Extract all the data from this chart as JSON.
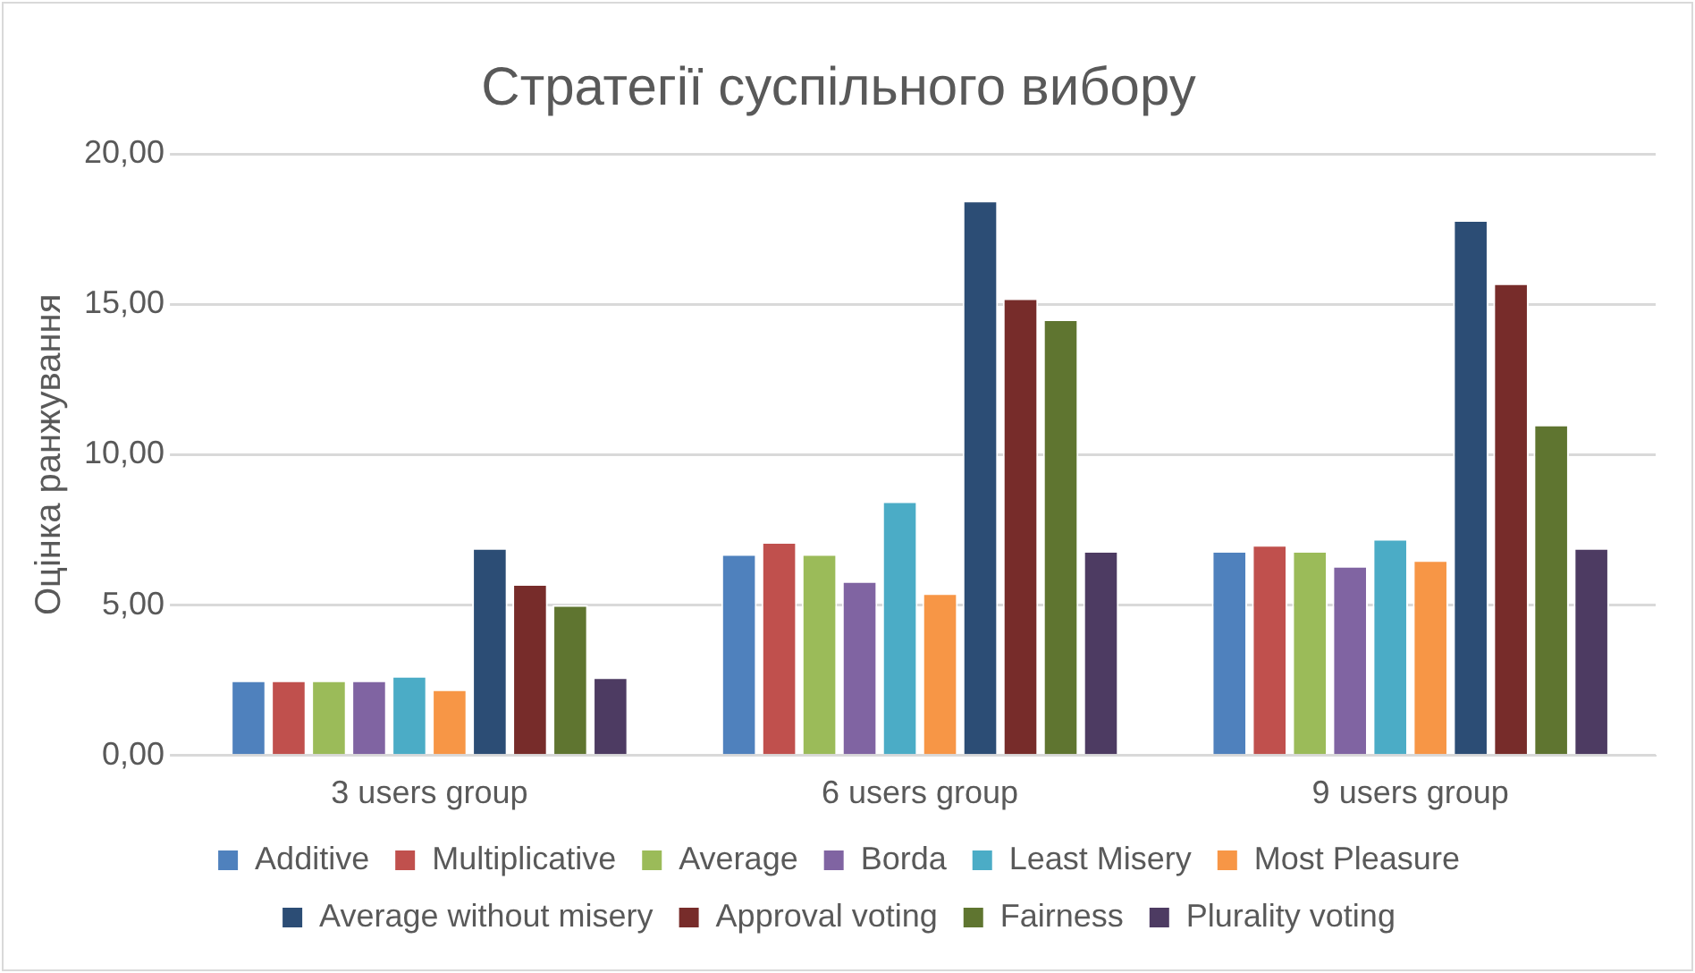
{
  "chart_data": {
    "type": "bar",
    "title": "Стратегії суспільного вибору",
    "ylabel": "Оцінка ранжування",
    "categories": [
      "3 users group",
      "6 users group",
      "9 users group"
    ],
    "series": [
      {
        "name": "Additive",
        "color": "#4f81bd",
        "values": [
          2.5,
          6.7,
          6.8
        ]
      },
      {
        "name": "Multiplicative",
        "color": "#c0504d",
        "values": [
          2.5,
          7.1,
          7.0
        ]
      },
      {
        "name": "Average",
        "color": "#9bbb59",
        "values": [
          2.5,
          6.7,
          6.8
        ]
      },
      {
        "name": "Borda",
        "color": "#8064a2",
        "values": [
          2.5,
          5.8,
          6.3
        ]
      },
      {
        "name": "Least Misery",
        "color": "#4bacc6",
        "values": [
          2.65,
          8.45,
          7.2
        ]
      },
      {
        "name": "Most Pleasure",
        "color": "#f79646",
        "values": [
          2.2,
          5.4,
          6.5
        ]
      },
      {
        "name": "Average without misery",
        "color": "#2c4d75",
        "values": [
          6.9,
          18.45,
          17.8
        ]
      },
      {
        "name": "Approval voting",
        "color": "#772c2a",
        "values": [
          5.7,
          15.2,
          15.7
        ]
      },
      {
        "name": "Fairness",
        "color": "#5f7530",
        "values": [
          5.0,
          14.5,
          11.0
        ]
      },
      {
        "name": "Plurality voting",
        "color": "#4d3b62",
        "values": [
          2.6,
          6.8,
          6.9
        ]
      }
    ],
    "ylim": [
      0,
      20
    ],
    "yticks": [
      {
        "value": 0,
        "label": "0,00"
      },
      {
        "value": 5,
        "label": "5,00"
      },
      {
        "value": 10,
        "label": "10,00"
      },
      {
        "value": 15,
        "label": "15,00"
      },
      {
        "value": 20,
        "label": "20,00"
      }
    ],
    "grid": "y",
    "legend": "bottom"
  }
}
